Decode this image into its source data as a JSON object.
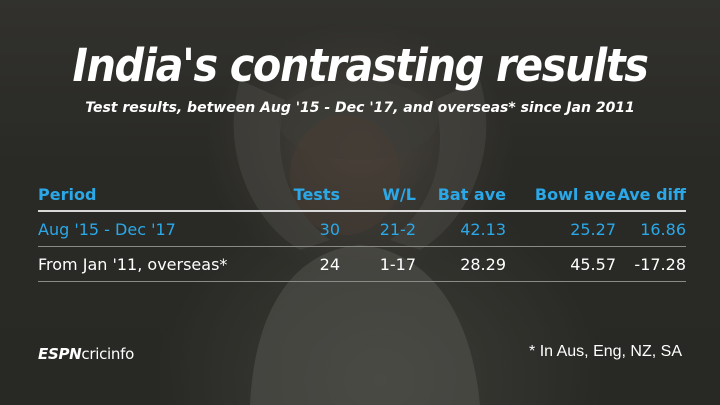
{
  "title": "India's contrasting results",
  "subtitle": "Test results, between Aug '15 - Dec '17, and overseas* since Jan 2011",
  "table": {
    "headers": {
      "period": "Period",
      "tests": "Tests",
      "wl": "W/L",
      "bat_ave": "Bat ave",
      "bowl_ave": "Bowl ave",
      "ave_diff": "Ave diff"
    },
    "rows": [
      {
        "period": "Aug '15 - Dec '17",
        "tests": "30",
        "wl": "21-2",
        "bat_ave": "42.13",
        "bowl_ave": "25.27",
        "ave_diff": "16.86"
      },
      {
        "period": "From Jan '11, overseas*",
        "tests": "24",
        "wl": "1-17",
        "bat_ave": "28.29",
        "bowl_ave": "45.57",
        "ave_diff": "-17.28"
      }
    ]
  },
  "logo": {
    "espn": "ESPN",
    "cricinfo": "cricinfo"
  },
  "footnote": "* In Aus, Eng, NZ, SA",
  "colors": {
    "accent": "#2aa8e8",
    "text": "#ffffff",
    "background": "#2f2f2b"
  }
}
